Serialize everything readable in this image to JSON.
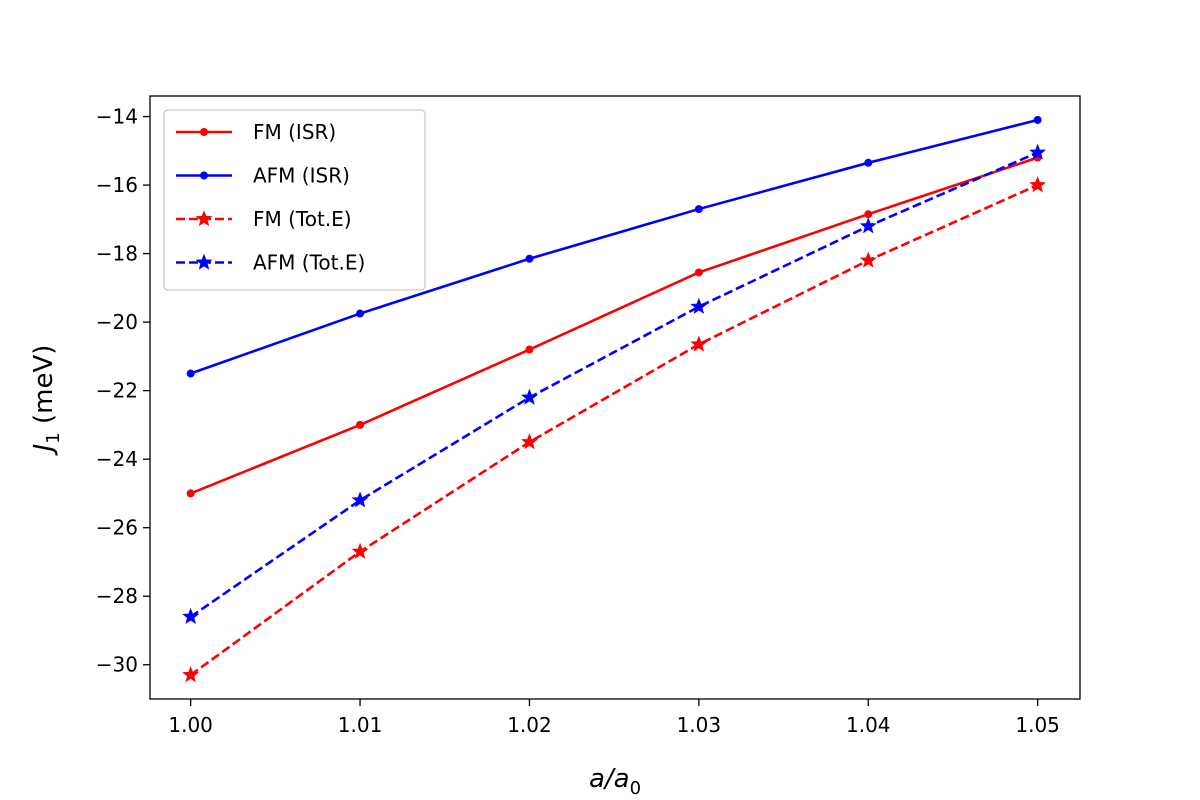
{
  "chart_data": {
    "type": "line",
    "title": "",
    "xlabel": {
      "base": "a/a",
      "sub": "0"
    },
    "ylabel": {
      "base": "J",
      "sub": "1",
      "rest": " (meV)"
    },
    "x": [
      1.0,
      1.01,
      1.02,
      1.03,
      1.04,
      1.05
    ],
    "xlim": [
      0.9976,
      1.0525
    ],
    "ylim": [
      -31.0,
      -13.4
    ],
    "xticks": [
      1.0,
      1.01,
      1.02,
      1.03,
      1.04,
      1.05
    ],
    "xtick_labels": [
      "1.00",
      "1.01",
      "1.02",
      "1.03",
      "1.04",
      "1.05"
    ],
    "yticks": [
      -30,
      -28,
      -26,
      -24,
      -22,
      -20,
      -18,
      -16,
      -14
    ],
    "ytick_labels": [
      "−30",
      "−28",
      "−26",
      "−24",
      "−22",
      "−20",
      "−18",
      "−16",
      "−14"
    ],
    "grid": false,
    "legend_position": "top-left",
    "series": [
      {
        "name": "FM (ISR)",
        "color": "#ff0000",
        "linestyle": "solid",
        "marker": "dot",
        "values": [
          -25.0,
          -23.0,
          -20.8,
          -18.55,
          -16.85,
          -15.2
        ]
      },
      {
        "name": "AFM (ISR)",
        "color": "#0000ff",
        "linestyle": "solid",
        "marker": "dot",
        "values": [
          -21.5,
          -19.75,
          -18.15,
          -16.7,
          -15.35,
          -14.1
        ]
      },
      {
        "name": "FM (Tot.E)",
        "color": "#ff0000",
        "linestyle": "dashed",
        "marker": "star",
        "values": [
          -30.3,
          -26.7,
          -23.5,
          -20.65,
          -18.2,
          -16.0
        ]
      },
      {
        "name": "AFM (Tot.E)",
        "color": "#0000ff",
        "linestyle": "dashed",
        "marker": "star",
        "values": [
          -28.6,
          -25.2,
          -22.2,
          -19.55,
          -17.2,
          -15.05
        ]
      }
    ]
  }
}
